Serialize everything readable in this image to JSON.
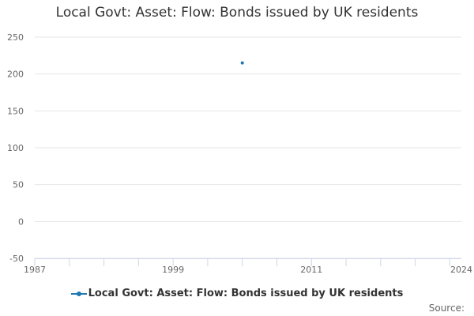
{
  "chart_data": {
    "type": "scatter",
    "title": "Local Govt: Asset: Flow: Bonds issued by UK residents",
    "xlabel": "",
    "ylabel": "",
    "x_ticks": [
      "1987",
      "1999",
      "2011",
      "2024"
    ],
    "xlim": [
      1987,
      2024
    ],
    "y_ticks": [
      "250",
      "200",
      "150",
      "100",
      "50",
      "0",
      "-50"
    ],
    "ylim": [
      -50,
      250
    ],
    "grid": true,
    "legend_position": "bottom",
    "series": [
      {
        "name": "Local Govt: Asset: Flow: Bonds issued by UK residents",
        "color": "#1f77b4",
        "points": [
          {
            "x": 2005,
            "y": 215
          }
        ]
      }
    ],
    "source": "Source:"
  }
}
